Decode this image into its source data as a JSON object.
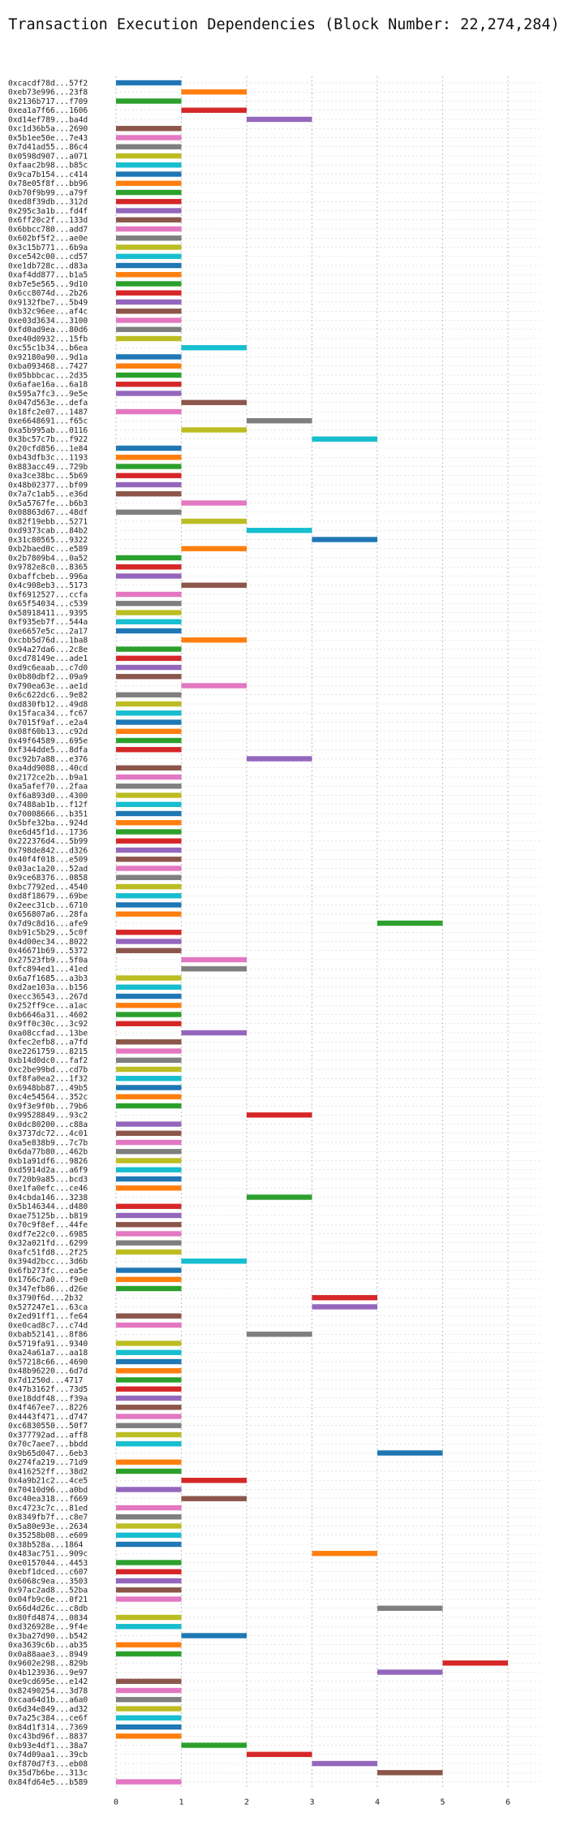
{
  "chart_data": {
    "type": "bar",
    "orientation": "horizontal-gantt",
    "title": "Transaction Execution Dependencies (Block Number: 22,274,284)",
    "xlabel": "",
    "ylabel": "",
    "xlim": [
      0,
      6.5
    ],
    "x_ticks": [
      "0",
      "1",
      "2",
      "3",
      "4",
      "5",
      "6"
    ],
    "grid": true,
    "legend": "none",
    "palette": [
      "#1f77b4",
      "#ff7f0e",
      "#2ca02c",
      "#d62728",
      "#9467bd",
      "#8c564b",
      "#e377c2",
      "#7f7f7f",
      "#bcbd22",
      "#17becf"
    ],
    "transactions": [
      {
        "label": "0xcacdf78d...57f2",
        "start": 0
      },
      {
        "label": "0xeb73e996...23f8",
        "start": 1
      },
      {
        "label": "0x2136b717...f709",
        "start": 0
      },
      {
        "label": "0xea1a7f66...1606",
        "start": 1
      },
      {
        "label": "0xd14ef789...ba4d",
        "start": 2
      },
      {
        "label": "0xc1d36b5a...2690",
        "start": 0
      },
      {
        "label": "0x5b1ee50e...7e43",
        "start": 0
      },
      {
        "label": "0x7d41ad55...86c4",
        "start": 0
      },
      {
        "label": "0x0598d907...a071",
        "start": 0
      },
      {
        "label": "0xfaac2b98...b85c",
        "start": 0
      },
      {
        "label": "0x9ca7b154...c414",
        "start": 0
      },
      {
        "label": "0x78e05f8f...bb96",
        "start": 0
      },
      {
        "label": "0xb70f9b99...a79f",
        "start": 0
      },
      {
        "label": "0xed8f39db...312d",
        "start": 0
      },
      {
        "label": "0x295c3a1b...fd4f",
        "start": 0
      },
      {
        "label": "0x6ff20c2f...133d",
        "start": 0
      },
      {
        "label": "0x6bbcc780...add7",
        "start": 0
      },
      {
        "label": "0x602bf5f2...ae0e",
        "start": 0
      },
      {
        "label": "0x3c15b771...6b9a",
        "start": 0
      },
      {
        "label": "0xce542c00...cd57",
        "start": 0
      },
      {
        "label": "0xe1db728c...d83a",
        "start": 0
      },
      {
        "label": "0xaf4dd877...b1a5",
        "start": 0
      },
      {
        "label": "0xb7e5e565...9d10",
        "start": 0
      },
      {
        "label": "0x6cc8074d...2b26",
        "start": 0
      },
      {
        "label": "0x9132fbe7...5b49",
        "start": 0
      },
      {
        "label": "0xb32c96ee...af4c",
        "start": 0
      },
      {
        "label": "0xe03d3634...3100",
        "start": 0
      },
      {
        "label": "0xfd0ad9ea...80d6",
        "start": 0
      },
      {
        "label": "0xe40d0932...15fb",
        "start": 0
      },
      {
        "label": "0xc55c1b34...b6ea",
        "start": 1
      },
      {
        "label": "0x92180a90...9d1a",
        "start": 0
      },
      {
        "label": "0xba093468...7427",
        "start": 0
      },
      {
        "label": "0x05bbbcac...2d35",
        "start": 0
      },
      {
        "label": "0x6afae16a...6a18",
        "start": 0
      },
      {
        "label": "0x595a7fc3...9e5e",
        "start": 0
      },
      {
        "label": "0x047d563e...defa",
        "start": 1
      },
      {
        "label": "0x18fc2e07...1487",
        "start": 0
      },
      {
        "label": "0xe6648691...f65c",
        "start": 2
      },
      {
        "label": "0xa5b995ab...0116",
        "start": 1
      },
      {
        "label": "0x3bc57c7b...f922",
        "start": 3
      },
      {
        "label": "0x20cfd856...1e84",
        "start": 0
      },
      {
        "label": "0xb43dfb3c...1193",
        "start": 0
      },
      {
        "label": "0x883acc49...729b",
        "start": 0
      },
      {
        "label": "0xa3ce38bc...5b69",
        "start": 0
      },
      {
        "label": "0x48b02377...bf09",
        "start": 0
      },
      {
        "label": "0x7a7c1ab5...e36d",
        "start": 0
      },
      {
        "label": "0x5a5767fe...b6b3",
        "start": 1
      },
      {
        "label": "0x08863d67...48df",
        "start": 0
      },
      {
        "label": "0x82f19ebb...5271",
        "start": 1
      },
      {
        "label": "0xd9373cab...84b2",
        "start": 2
      },
      {
        "label": "0x31c80565...9322",
        "start": 3
      },
      {
        "label": "0xb2baed0c...e589",
        "start": 1
      },
      {
        "label": "0x2b7809b4...0a52",
        "start": 0
      },
      {
        "label": "0x9782e8c0...8365",
        "start": 0
      },
      {
        "label": "0xbaffcbeb...996a",
        "start": 0
      },
      {
        "label": "0x4c908eb3...5173",
        "start": 1
      },
      {
        "label": "0xf6912527...ccfa",
        "start": 0
      },
      {
        "label": "0x65f54034...c539",
        "start": 0
      },
      {
        "label": "0x58918411...9395",
        "start": 0
      },
      {
        "label": "0xf935eb7f...544a",
        "start": 0
      },
      {
        "label": "0xe6657e5c...2a17",
        "start": 0
      },
      {
        "label": "0xcbb5d76d...1ba8",
        "start": 1
      },
      {
        "label": "0x94a27da6...2c8e",
        "start": 0
      },
      {
        "label": "0xcd78149e...ade1",
        "start": 0
      },
      {
        "label": "0xd9c6eaab...c7d0",
        "start": 0
      },
      {
        "label": "0x0b80dbf2...09a9",
        "start": 0
      },
      {
        "label": "0x790ea63e...ae1d",
        "start": 1
      },
      {
        "label": "0x6c622dc6...9e82",
        "start": 0
      },
      {
        "label": "0xd830fb12...49d8",
        "start": 0
      },
      {
        "label": "0x15faca34...fc67",
        "start": 0
      },
      {
        "label": "0x7015f9af...e2a4",
        "start": 0
      },
      {
        "label": "0x08f60b13...c92d",
        "start": 0
      },
      {
        "label": "0x49f64589...695e",
        "start": 0
      },
      {
        "label": "0xf344dde5...8dfa",
        "start": 0
      },
      {
        "label": "0xc92b7a88...e376",
        "start": 2
      },
      {
        "label": "0xa4dd9088...40cd",
        "start": 0
      },
      {
        "label": "0x2172ce2b...b9a1",
        "start": 0
      },
      {
        "label": "0xa5afef70...2faa",
        "start": 0
      },
      {
        "label": "0xf6a893d0...4300",
        "start": 0
      },
      {
        "label": "0x7488ab1b...f12f",
        "start": 0
      },
      {
        "label": "0x70008666...b351",
        "start": 0
      },
      {
        "label": "0x5bfe32ba...924d",
        "start": 0
      },
      {
        "label": "0xe6d45f1d...1736",
        "start": 0
      },
      {
        "label": "0x222376d4...5b99",
        "start": 0
      },
      {
        "label": "0x798de842...d326",
        "start": 0
      },
      {
        "label": "0x40f4f018...e509",
        "start": 0
      },
      {
        "label": "0x03ac1a20...52ad",
        "start": 0
      },
      {
        "label": "0x9ce68376...0858",
        "start": 0
      },
      {
        "label": "0xbc7792ed...4540",
        "start": 0
      },
      {
        "label": "0xd8f18679...69be",
        "start": 0
      },
      {
        "label": "0x2eec31cb...6710",
        "start": 0
      },
      {
        "label": "0x656807a6...28fa",
        "start": 0
      },
      {
        "label": "0x7d9c8d16...afe9",
        "start": 4
      },
      {
        "label": "0xb91c5b29...5c0f",
        "start": 0
      },
      {
        "label": "0x4d00ec34...8022",
        "start": 0
      },
      {
        "label": "0x46671b69...5372",
        "start": 0
      },
      {
        "label": "0x27523fb9...5f0a",
        "start": 1
      },
      {
        "label": "0xfc894ed1...41ed",
        "start": 1
      },
      {
        "label": "0x6a7f1685...a3b3",
        "start": 0
      },
      {
        "label": "0xd2ae103a...b156",
        "start": 0
      },
      {
        "label": "0xecc36543...267d",
        "start": 0
      },
      {
        "label": "0x252ff9ce...a1ac",
        "start": 0
      },
      {
        "label": "0xb6646a31...4602",
        "start": 0
      },
      {
        "label": "0x9ff0c30c...3c92",
        "start": 0
      },
      {
        "label": "0xa08ccfad...13be",
        "start": 1
      },
      {
        "label": "0xfec2efb8...a7fd",
        "start": 0
      },
      {
        "label": "0xe2261759...8215",
        "start": 0
      },
      {
        "label": "0xb14d0dc0...faf2",
        "start": 0
      },
      {
        "label": "0xc2be99bd...cd7b",
        "start": 0
      },
      {
        "label": "0xf8fa0ea2...1f32",
        "start": 0
      },
      {
        "label": "0x6948bb87...49b5",
        "start": 0
      },
      {
        "label": "0xc4e54564...352c",
        "start": 0
      },
      {
        "label": "0x9f3e9f0b...79b6",
        "start": 0
      },
      {
        "label": "0x99528849...93c2",
        "start": 2
      },
      {
        "label": "0x0dc80200...c88a",
        "start": 0
      },
      {
        "label": "0x3737dc72...4c01",
        "start": 0
      },
      {
        "label": "0xa5e838b9...7c7b",
        "start": 0
      },
      {
        "label": "0x6da77b80...462b",
        "start": 0
      },
      {
        "label": "0xb1a91df6...9826",
        "start": 0
      },
      {
        "label": "0xd5914d2a...a6f9",
        "start": 0
      },
      {
        "label": "0x720b9a85...bcd3",
        "start": 0
      },
      {
        "label": "0xe1fa0efc...ce46",
        "start": 0
      },
      {
        "label": "0x4cbda146...3238",
        "start": 2
      },
      {
        "label": "0x5b146344...d480",
        "start": 0
      },
      {
        "label": "0xae75125b...b819",
        "start": 0
      },
      {
        "label": "0x70c9f8ef...44fe",
        "start": 0
      },
      {
        "label": "0xdf7e22c0...6985",
        "start": 0
      },
      {
        "label": "0x32a021fd...6299",
        "start": 0
      },
      {
        "label": "0xafc51fd8...2f25",
        "start": 0
      },
      {
        "label": "0x394d2bcc...3d6b",
        "start": 1
      },
      {
        "label": "0x6fb273fc...ea5e",
        "start": 0
      },
      {
        "label": "0x1766c7a0...f9e0",
        "start": 0
      },
      {
        "label": "0x347efb86...d26e",
        "start": 0
      },
      {
        "label": "0x3790f6d...2b32",
        "start": 3
      },
      {
        "label": "0x527247e1...63ca",
        "start": 3
      },
      {
        "label": "0x2ed91ff1...fe64",
        "start": 0
      },
      {
        "label": "0xe0cad8c7...c74d",
        "start": 0
      },
      {
        "label": "0xbab52141...8f86",
        "start": 2
      },
      {
        "label": "0x5719fa91...9340",
        "start": 0
      },
      {
        "label": "0xa24a61a7...aa18",
        "start": 0
      },
      {
        "label": "0x57218c66...4690",
        "start": 0
      },
      {
        "label": "0x48b96220...6d7d",
        "start": 0
      },
      {
        "label": "0x7d1250d...4717",
        "start": 0
      },
      {
        "label": "0x47b3162f...73d5",
        "start": 0
      },
      {
        "label": "0xe18ddf48...f39a",
        "start": 0
      },
      {
        "label": "0x4f467ee7...8226",
        "start": 0
      },
      {
        "label": "0x4443f471...d747",
        "start": 0
      },
      {
        "label": "0xc6830550...50f7",
        "start": 0
      },
      {
        "label": "0x377792ad...aff8",
        "start": 0
      },
      {
        "label": "0x70c7aee7...bbdd",
        "start": 0
      },
      {
        "label": "0x9b65d047...6eb3",
        "start": 4
      },
      {
        "label": "0x274fa219...71d9",
        "start": 0
      },
      {
        "label": "0x416252ff...38d2",
        "start": 0
      },
      {
        "label": "0x4a9b21c2...4ce5",
        "start": 1
      },
      {
        "label": "0x70410d96...a0bd",
        "start": 0
      },
      {
        "label": "0xc40ea318...f669",
        "start": 1
      },
      {
        "label": "0xc4723c7c...81ed",
        "start": 0
      },
      {
        "label": "0x8349fb7f...c8e7",
        "start": 0
      },
      {
        "label": "0x5a80e93e...2634",
        "start": 0
      },
      {
        "label": "0x35258b08...e609",
        "start": 0
      },
      {
        "label": "0x38b528a...1864",
        "start": 0
      },
      {
        "label": "0x483ac751...909c",
        "start": 3
      },
      {
        "label": "0xe0157044...4453",
        "start": 0
      },
      {
        "label": "0xebf1dced...c607",
        "start": 0
      },
      {
        "label": "0x6068c9ea...3503",
        "start": 0
      },
      {
        "label": "0x97ac2ad8...52ba",
        "start": 0
      },
      {
        "label": "0x04fb9c0e...0f21",
        "start": 0
      },
      {
        "label": "0x66d4d26c...c8db",
        "start": 4
      },
      {
        "label": "0x80fd4874...0834",
        "start": 0
      },
      {
        "label": "0xd326928e...9f4e",
        "start": 0
      },
      {
        "label": "0x3ba27d90...b542",
        "start": 1
      },
      {
        "label": "0xa3639c6b...ab35",
        "start": 0
      },
      {
        "label": "0x0a88aae3...8949",
        "start": 0
      },
      {
        "label": "0x9602e298...829b",
        "start": 5
      },
      {
        "label": "0x4b123936...9e97",
        "start": 4
      },
      {
        "label": "0xe9cd695e...e142",
        "start": 0
      },
      {
        "label": "0x82490254...3d78",
        "start": 0
      },
      {
        "label": "0xcaa64d1b...a6a0",
        "start": 0
      },
      {
        "label": "0x6d34e849...ad32",
        "start": 0
      },
      {
        "label": "0x7a25c384...ce6f",
        "start": 0
      },
      {
        "label": "0x84d1f314...7369",
        "start": 0
      },
      {
        "label": "0xc43bd96f...8837",
        "start": 0
      },
      {
        "label": "0xb93e4df1...38a7",
        "start": 1
      },
      {
        "label": "0x74d09aa1...39cb",
        "start": 2
      },
      {
        "label": "0xf870d7f3...eb08",
        "start": 3
      },
      {
        "label": "0x35d7b6be...313c",
        "start": 4
      },
      {
        "label": "0x84fd64e5...b589",
        "start": 0
      }
    ]
  }
}
